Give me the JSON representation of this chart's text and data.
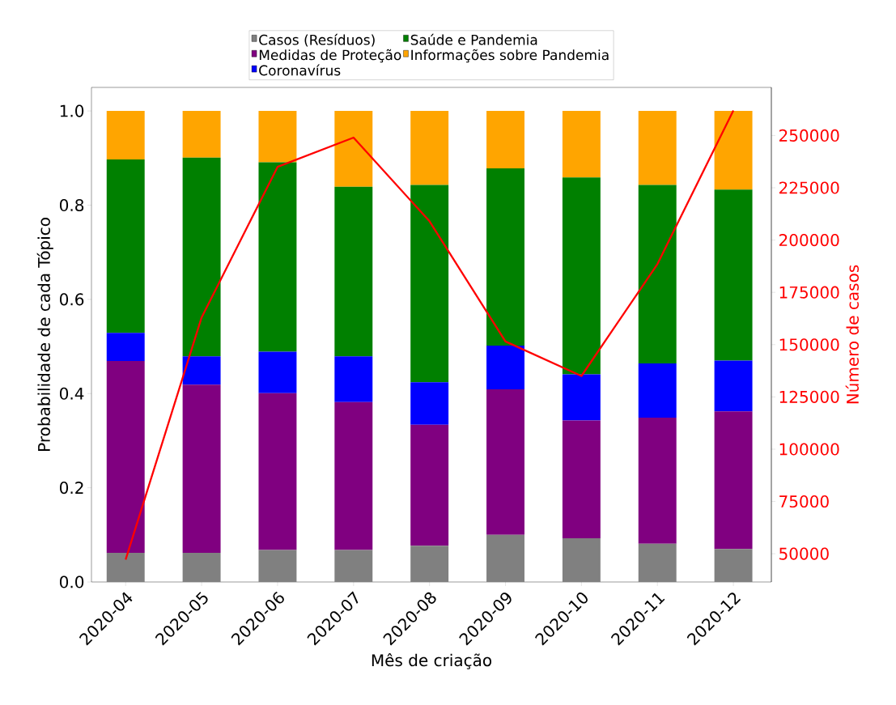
{
  "chart_data": {
    "type": "bar",
    "stacked": true,
    "xlabel": "Mês de criação",
    "ylabel": "Probabilidade de cada Tópico",
    "y2label": "Número de casos",
    "categories": [
      "2020-04",
      "2020-05",
      "2020-06",
      "2020-07",
      "2020-08",
      "2020-09",
      "2020-10",
      "2020-11",
      "2020-12"
    ],
    "series": [
      {
        "name": "Casos (Resíduos)",
        "color": "#808080",
        "values": [
          0.062,
          0.062,
          0.068,
          0.068,
          0.077,
          0.1,
          0.093,
          0.081,
          0.07
        ]
      },
      {
        "name": "Medidas de Proteção",
        "color": "#800080",
        "values": [
          0.407,
          0.357,
          0.333,
          0.314,
          0.257,
          0.309,
          0.25,
          0.268,
          0.292
        ]
      },
      {
        "name": "Coronavírus",
        "color": "#0000ff",
        "values": [
          0.06,
          0.06,
          0.088,
          0.097,
          0.09,
          0.093,
          0.098,
          0.115,
          0.108
        ]
      },
      {
        "name": "Saúde e Pandemia",
        "color": "#008000",
        "values": [
          0.368,
          0.422,
          0.402,
          0.36,
          0.419,
          0.376,
          0.418,
          0.379,
          0.363
        ]
      },
      {
        "name": "Informações sobre Pandemia",
        "color": "#ffa500",
        "values": [
          0.103,
          0.099,
          0.109,
          0.161,
          0.157,
          0.122,
          0.141,
          0.157,
          0.167
        ]
      },
      {
        "type": "line",
        "axis": "y2",
        "color": "#ff0000",
        "values": [
          47200,
          163000,
          235000,
          249000,
          209000,
          151500,
          135000,
          188500,
          262000
        ]
      }
    ],
    "ylim": [
      0,
      1.05
    ],
    "yticks": [
      {
        "value": 0,
        "label": "0.0"
      },
      0.2,
      0.4,
      0.6,
      0.8,
      {
        "value": 1,
        "label": "1.0"
      }
    ],
    "y2lim": [
      36500,
      273000
    ],
    "y2ticks": [
      50000,
      75000,
      100000,
      125000,
      150000,
      175000,
      200000,
      225000,
      250000
    ],
    "legend": "top"
  }
}
